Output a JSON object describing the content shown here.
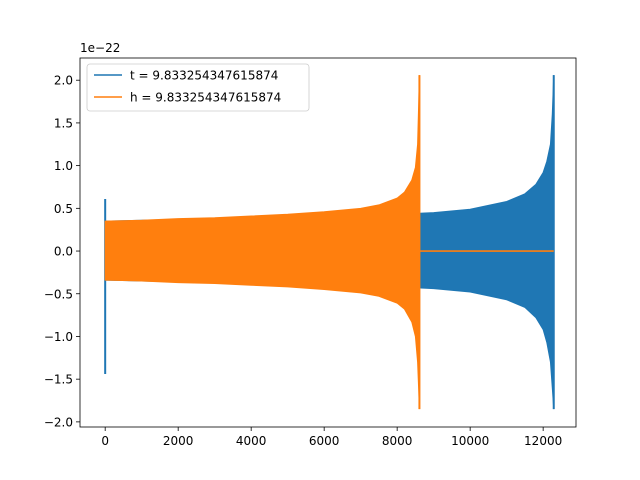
{
  "chart_data": {
    "type": "line",
    "title": "",
    "xlabel": "",
    "ylabel": "",
    "y_offset_label": "1e−22",
    "xlim": [
      -690,
      12900
    ],
    "ylim": [
      -2.06,
      2.26
    ],
    "x_ticks": [
      0,
      2000,
      4000,
      6000,
      8000,
      10000,
      12000
    ],
    "x_tick_labels": [
      "0",
      "2000",
      "4000",
      "6000",
      "8000",
      "10000",
      "12000"
    ],
    "y_ticks": [
      -2.0,
      -1.5,
      -1.0,
      -0.5,
      0.0,
      0.5,
      1.0,
      1.5,
      2.0
    ],
    "y_tick_labels": [
      "−2.0",
      "−1.5",
      "−1.0",
      "−0.5",
      "0.0",
      "0.5",
      "1.0",
      "1.5",
      "2.0"
    ],
    "grid": false,
    "legend_position": "upper-left",
    "series": [
      {
        "name": "t = 9.833254347615874",
        "color": "#1f77b4",
        "start_spike": {
          "x": 0,
          "ymin": -1.44,
          "ymax": 0.61
        },
        "envelope_x": [
          0,
          1000,
          2000,
          3000,
          4000,
          5000,
          6000,
          7000,
          8000,
          9000,
          10000,
          11000,
          11500,
          11800,
          12000,
          12100,
          12200,
          12250,
          12290
        ],
        "envelope_upper": [
          0.35,
          0.36,
          0.37,
          0.38,
          0.39,
          0.4,
          0.41,
          0.42,
          0.43,
          0.45,
          0.49,
          0.58,
          0.67,
          0.78,
          0.92,
          1.05,
          1.25,
          1.6,
          2.06
        ],
        "envelope_lower": [
          -0.34,
          -0.35,
          -0.36,
          -0.37,
          -0.38,
          -0.39,
          -0.4,
          -0.41,
          -0.42,
          -0.44,
          -0.48,
          -0.57,
          -0.66,
          -0.78,
          -0.92,
          -1.07,
          -1.3,
          -1.6,
          -1.85
        ],
        "end_x": 12290
      },
      {
        "name": "h = 9.833254347615874",
        "color": "#ff7f0e",
        "envelope_x": [
          0,
          1000,
          2000,
          3000,
          4000,
          5000,
          6000,
          7000,
          7500,
          8000,
          8200,
          8400,
          8500,
          8560,
          8610
        ],
        "envelope_upper": [
          0.35,
          0.36,
          0.38,
          0.39,
          0.41,
          0.43,
          0.46,
          0.5,
          0.54,
          0.62,
          0.69,
          0.83,
          0.98,
          1.25,
          2.06
        ],
        "envelope_lower": [
          -0.34,
          -0.35,
          -0.37,
          -0.38,
          -0.4,
          -0.42,
          -0.45,
          -0.49,
          -0.53,
          -0.61,
          -0.68,
          -0.83,
          -1.0,
          -1.3,
          -1.85
        ],
        "end_x": 8610,
        "zero_until": 12290
      }
    ]
  }
}
